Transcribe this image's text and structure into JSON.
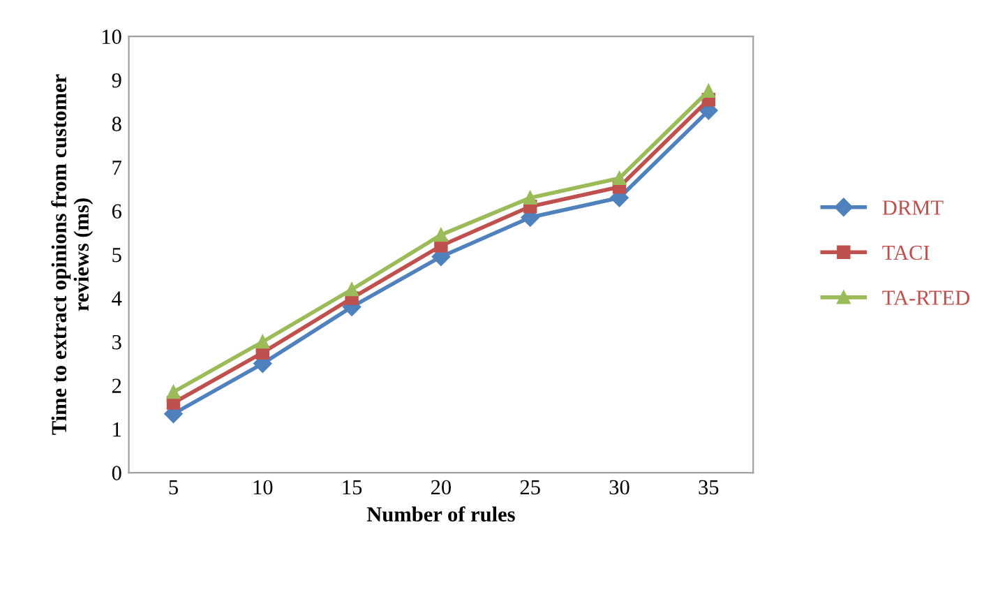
{
  "chart_data": {
    "type": "line",
    "xlabel": "Number of rules",
    "ylabel": "Time to extract opinions from customer\nreviews (ms)",
    "categories": [
      "5",
      "10",
      "15",
      "20",
      "25",
      "30",
      "35"
    ],
    "series": [
      {
        "name": "DRMT",
        "color": "#4f81bd",
        "marker": "diamond",
        "values": [
          1.35,
          2.5,
          3.8,
          4.95,
          5.85,
          6.3,
          8.3
        ]
      },
      {
        "name": "TACI",
        "color": "#c0504d",
        "marker": "square",
        "values": [
          1.6,
          2.75,
          4.0,
          5.2,
          6.1,
          6.55,
          8.55
        ]
      },
      {
        "name": "TA-RTED",
        "color": "#9bbb59",
        "marker": "triangle",
        "values": [
          1.85,
          3.0,
          4.2,
          5.45,
          6.3,
          6.75,
          8.75
        ]
      }
    ],
    "ylim": [
      0,
      10
    ],
    "yticks": [
      0,
      1,
      2,
      3,
      4,
      5,
      6,
      7,
      8,
      9,
      10
    ],
    "grid": false,
    "legend": "right",
    "line_style": "solid"
  }
}
